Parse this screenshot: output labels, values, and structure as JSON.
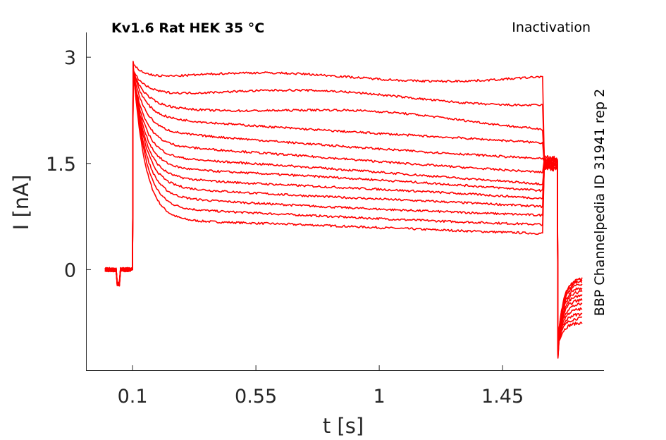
{
  "chart_data": {
    "type": "line",
    "title": "Kv1.6  Rat  HEK  35 °C",
    "subtitle": "Inactivation",
    "side_note": "BBP Channelpedia ID 31941 rep 2",
    "xlabel": "t [s]",
    "ylabel": "I [nA]",
    "xlim": [
      -0.07,
      1.82
    ],
    "ylim": [
      -1.42,
      3.35
    ],
    "xticks": [
      0.1,
      0.55,
      1,
      1.45
    ],
    "xtick_labels": [
      "0.1",
      "0.55",
      "1",
      "1.45"
    ],
    "yticks": [
      0,
      1.5,
      3
    ],
    "ytick_labels": [
      "0",
      "1.5",
      "3"
    ],
    "grid": false,
    "line_color": "#ff0000",
    "protocol": {
      "baseline_start": 0.0,
      "step_on": 0.1,
      "step_off": 1.6,
      "tail_end": 1.65,
      "trace_end": 1.74
    },
    "series": [
      {
        "peak": 2.94,
        "plateau": 0.7,
        "end": 0.52,
        "tail": -0.75
      },
      {
        "peak": 2.92,
        "plateau": 0.86,
        "end": 0.64,
        "tail": -0.68
      },
      {
        "peak": 2.9,
        "plateau": 1.02,
        "end": 0.76,
        "tail": -0.62
      },
      {
        "peak": 2.88,
        "plateau": 1.18,
        "end": 0.88,
        "tail": -0.55
      },
      {
        "peak": 2.86,
        "plateau": 1.32,
        "end": 1.0,
        "tail": -0.48
      },
      {
        "peak": 2.84,
        "plateau": 1.46,
        "end": 1.12,
        "tail": -0.42
      },
      {
        "peak": 2.82,
        "plateau": 1.6,
        "end": 1.22,
        "tail": -0.36
      },
      {
        "peak": 2.8,
        "plateau": 1.76,
        "end": 1.38,
        "tail": -0.3
      },
      {
        "peak": 2.82,
        "plateau": 1.95,
        "end": 1.56,
        "tail": -0.25
      },
      {
        "peak": 2.84,
        "plateau": 2.15,
        "end": 1.78,
        "tail": -0.2
      },
      {
        "peak": 2.86,
        "plateau": 2.37,
        "end": 2.04,
        "tail": -0.16
      },
      {
        "peak": 2.88,
        "plateau": 2.55,
        "end": 2.37,
        "tail": -0.13
      },
      {
        "peak": 2.94,
        "plateau": 2.72,
        "end": 2.72,
        "tail": -0.12
      }
    ]
  }
}
